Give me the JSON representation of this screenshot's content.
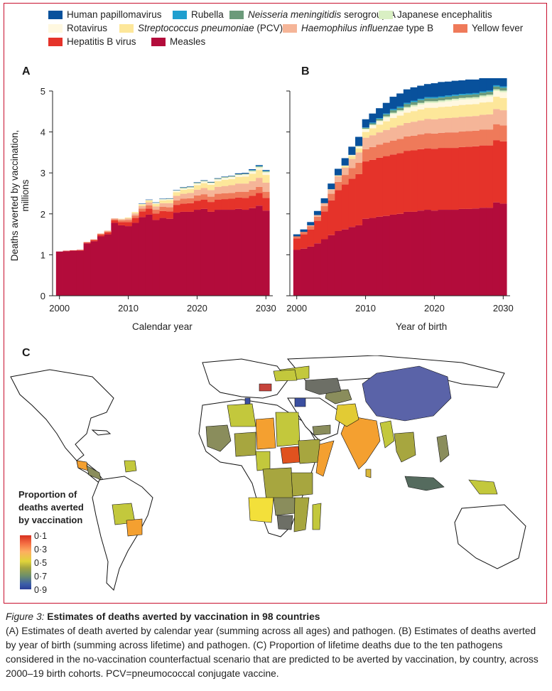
{
  "legend": [
    {
      "name": "Human papillomavirus",
      "color": "#08519c",
      "italic": false
    },
    {
      "name": "Rubella",
      "color": "#1f9fcf",
      "italic": false
    },
    {
      "name": "Neisseria meningitidis",
      "suffix": " serogroup A",
      "color": "#6b9a7a",
      "italic": true
    },
    {
      "name": "Japanese encephalitis",
      "color": "#d9efc3",
      "italic": false
    },
    {
      "name": "Rotavirus",
      "color": "#fff8e0",
      "italic": false
    },
    {
      "name": "Streptococcus pneumoniae",
      "suffix": " (PCV)",
      "color": "#fde79a",
      "italic": true
    },
    {
      "name": "Haemophilus influenzae",
      "suffix": " type B",
      "color": "#f5b598",
      "italic": true
    },
    {
      "name": "Yellow fever",
      "color": "#ef7a5a",
      "italic": false
    },
    {
      "name": "Hepatitis B virus",
      "color": "#e5332a",
      "italic": false
    },
    {
      "name": "Measles",
      "color": "#b30c3b",
      "italic": false
    }
  ],
  "panels": {
    "a": "A",
    "b": "B",
    "c": "C"
  },
  "chart_data": [
    {
      "type": "area",
      "panel": "A",
      "xlabel": "Calendar year",
      "ylabel": "Deaths averted by vaccination, millions",
      "ylim": [
        0,
        5
      ],
      "xlim": [
        1999,
        2031
      ],
      "yticks": [
        "0",
        "1",
        "2",
        "3",
        "4",
        "5"
      ],
      "xticks": [
        "2000",
        "2010",
        "2020",
        "2030"
      ],
      "x": [
        2000,
        2001,
        2002,
        2003,
        2004,
        2005,
        2006,
        2007,
        2008,
        2009,
        2010,
        2011,
        2012,
        2013,
        2014,
        2015,
        2016,
        2017,
        2018,
        2019,
        2020,
        2021,
        2022,
        2023,
        2024,
        2025,
        2026,
        2027,
        2028,
        2029,
        2030
      ],
      "series": [
        {
          "name": "Measles",
          "values": [
            1.08,
            1.09,
            1.1,
            1.1,
            1.28,
            1.33,
            1.45,
            1.5,
            1.78,
            1.72,
            1.7,
            1.78,
            1.92,
            1.98,
            1.85,
            1.9,
            1.88,
            2.03,
            2.05,
            2.05,
            2.1,
            2.12,
            2.05,
            2.1,
            2.1,
            2.1,
            2.12,
            2.1,
            2.14,
            2.2,
            2.08
          ]
        },
        {
          "name": "Hepatitis B virus",
          "values": [
            0.0,
            0.01,
            0.01,
            0.02,
            0.02,
            0.03,
            0.04,
            0.05,
            0.06,
            0.08,
            0.1,
            0.12,
            0.14,
            0.15,
            0.16,
            0.17,
            0.18,
            0.19,
            0.2,
            0.21,
            0.22,
            0.23,
            0.24,
            0.25,
            0.26,
            0.27,
            0.28,
            0.29,
            0.3,
            0.31,
            0.31
          ]
        },
        {
          "name": "Yellow fever",
          "values": [
            0.0,
            0.0,
            0.0,
            0.0,
            0.01,
            0.01,
            0.02,
            0.02,
            0.03,
            0.04,
            0.05,
            0.06,
            0.07,
            0.08,
            0.09,
            0.1,
            0.1,
            0.11,
            0.12,
            0.12,
            0.13,
            0.13,
            0.13,
            0.14,
            0.14,
            0.14,
            0.14,
            0.15,
            0.15,
            0.15,
            0.15
          ]
        },
        {
          "name": "Haemophilus influenzae type B",
          "values": [
            0.0,
            0.0,
            0.0,
            0.0,
            0.0,
            0.01,
            0.01,
            0.02,
            0.02,
            0.03,
            0.04,
            0.05,
            0.06,
            0.07,
            0.08,
            0.09,
            0.1,
            0.11,
            0.12,
            0.13,
            0.14,
            0.15,
            0.16,
            0.17,
            0.18,
            0.19,
            0.2,
            0.2,
            0.21,
            0.22,
            0.22
          ]
        },
        {
          "name": "Streptococcus pneumoniae (PCV)",
          "values": [
            0.0,
            0.0,
            0.0,
            0.0,
            0.0,
            0.0,
            0.0,
            0.0,
            0.0,
            0.01,
            0.02,
            0.03,
            0.04,
            0.05,
            0.06,
            0.07,
            0.08,
            0.09,
            0.1,
            0.1,
            0.11,
            0.12,
            0.13,
            0.14,
            0.15,
            0.15,
            0.16,
            0.17,
            0.18,
            0.19,
            0.19
          ]
        },
        {
          "name": "Rotavirus",
          "values": [
            0.0,
            0.0,
            0.0,
            0.0,
            0.0,
            0.0,
            0.0,
            0.0,
            0.0,
            0.0,
            0.0,
            0.01,
            0.01,
            0.01,
            0.02,
            0.02,
            0.02,
            0.03,
            0.03,
            0.03,
            0.04,
            0.04,
            0.04,
            0.04,
            0.05,
            0.05,
            0.05,
            0.05,
            0.05,
            0.06,
            0.06
          ]
        },
        {
          "name": "Japanese encephalitis",
          "values": [
            0.0,
            0.0,
            0.0,
            0.0,
            0.0,
            0.0,
            0.0,
            0.0,
            0.0,
            0.0,
            0.0,
            0.0,
            0.0,
            0.0,
            0.01,
            0.01,
            0.01,
            0.01,
            0.01,
            0.01,
            0.01,
            0.01,
            0.01,
            0.01,
            0.01,
            0.01,
            0.01,
            0.01,
            0.02,
            0.02,
            0.02
          ]
        },
        {
          "name": "Neisseria meningitidis serogroup A",
          "values": [
            0.0,
            0.0,
            0.0,
            0.0,
            0.0,
            0.0,
            0.0,
            0.0,
            0.0,
            0.0,
            0.0,
            0.0,
            0.0,
            0.0,
            0.0,
            0.0,
            0.0,
            0.0,
            0.01,
            0.01,
            0.01,
            0.01,
            0.01,
            0.01,
            0.01,
            0.01,
            0.01,
            0.01,
            0.01,
            0.01,
            0.01
          ]
        },
        {
          "name": "Rubella",
          "values": [
            0.0,
            0.0,
            0.0,
            0.0,
            0.0,
            0.0,
            0.0,
            0.0,
            0.0,
            0.0,
            0.0,
            0.0,
            0.0,
            0.0,
            0.0,
            0.0,
            0.0,
            0.0,
            0.0,
            0.0,
            0.0,
            0.0,
            0.0,
            0.0,
            0.0,
            0.0,
            0.0,
            0.0,
            0.01,
            0.01,
            0.01
          ]
        },
        {
          "name": "Human papillomavirus",
          "values": [
            0.0,
            0.0,
            0.0,
            0.0,
            0.0,
            0.0,
            0.0,
            0.0,
            0.0,
            0.0,
            0.0,
            0.0,
            0.01,
            0.01,
            0.01,
            0.01,
            0.01,
            0.01,
            0.01,
            0.01,
            0.01,
            0.01,
            0.01,
            0.01,
            0.01,
            0.01,
            0.02,
            0.02,
            0.02,
            0.02,
            0.02
          ]
        }
      ]
    },
    {
      "type": "area",
      "panel": "B",
      "xlabel": "Year of birth",
      "ylim": [
        0,
        5
      ],
      "xlim": [
        1999,
        2031
      ],
      "xticks": [
        "2000",
        "2010",
        "2020",
        "2030"
      ],
      "x": [
        2000,
        2001,
        2002,
        2003,
        2004,
        2005,
        2006,
        2007,
        2008,
        2009,
        2010,
        2011,
        2012,
        2013,
        2014,
        2015,
        2016,
        2017,
        2018,
        2019,
        2020,
        2021,
        2022,
        2023,
        2024,
        2025,
        2026,
        2027,
        2028,
        2029,
        2030
      ],
      "series": [
        {
          "name": "Measles",
          "values": [
            1.12,
            1.15,
            1.2,
            1.28,
            1.38,
            1.48,
            1.58,
            1.62,
            1.68,
            1.72,
            1.88,
            1.9,
            1.93,
            1.95,
            1.98,
            2.0,
            2.05,
            2.05,
            2.08,
            2.1,
            2.08,
            2.1,
            2.1,
            2.1,
            2.12,
            2.12,
            2.13,
            2.15,
            2.15,
            2.28,
            2.25
          ]
        },
        {
          "name": "Hepatitis B virus",
          "values": [
            0.28,
            0.35,
            0.42,
            0.55,
            0.68,
            0.85,
            1.0,
            1.1,
            1.18,
            1.25,
            1.4,
            1.42,
            1.44,
            1.46,
            1.47,
            1.48,
            1.49,
            1.5,
            1.5,
            1.5,
            1.51,
            1.51,
            1.51,
            1.51,
            1.51,
            1.52,
            1.52,
            1.52,
            1.52,
            1.52,
            1.52
          ]
        },
        {
          "name": "Yellow fever",
          "values": [
            0.05,
            0.06,
            0.08,
            0.1,
            0.13,
            0.16,
            0.2,
            0.23,
            0.26,
            0.28,
            0.3,
            0.31,
            0.32,
            0.33,
            0.34,
            0.35,
            0.35,
            0.36,
            0.36,
            0.37,
            0.37,
            0.37,
            0.38,
            0.38,
            0.38,
            0.38,
            0.38,
            0.39,
            0.39,
            0.39,
            0.39
          ]
        },
        {
          "name": "Haemophilus influenzae type B",
          "values": [
            0.0,
            0.0,
            0.02,
            0.04,
            0.07,
            0.1,
            0.14,
            0.18,
            0.22,
            0.25,
            0.28,
            0.29,
            0.3,
            0.31,
            0.32,
            0.33,
            0.33,
            0.34,
            0.34,
            0.35,
            0.35,
            0.35,
            0.35,
            0.36,
            0.36,
            0.36,
            0.36,
            0.36,
            0.37,
            0.37,
            0.37
          ]
        },
        {
          "name": "Streptococcus pneumoniae (PCV)",
          "values": [
            0.0,
            0.0,
            0.0,
            0.0,
            0.0,
            0.01,
            0.02,
            0.04,
            0.07,
            0.1,
            0.14,
            0.17,
            0.19,
            0.21,
            0.23,
            0.24,
            0.25,
            0.26,
            0.27,
            0.27,
            0.28,
            0.28,
            0.28,
            0.29,
            0.29,
            0.29,
            0.29,
            0.3,
            0.3,
            0.3,
            0.3
          ]
        },
        {
          "name": "Rotavirus",
          "values": [
            0.0,
            0.0,
            0.0,
            0.0,
            0.0,
            0.0,
            0.0,
            0.01,
            0.02,
            0.04,
            0.06,
            0.07,
            0.08,
            0.09,
            0.1,
            0.1,
            0.11,
            0.11,
            0.12,
            0.12,
            0.12,
            0.12,
            0.13,
            0.13,
            0.13,
            0.13,
            0.13,
            0.13,
            0.14,
            0.14,
            0.14
          ]
        },
        {
          "name": "Japanese encephalitis",
          "values": [
            0.0,
            0.0,
            0.0,
            0.0,
            0.0,
            0.0,
            0.0,
            0.0,
            0.01,
            0.01,
            0.02,
            0.02,
            0.02,
            0.03,
            0.03,
            0.03,
            0.03,
            0.04,
            0.04,
            0.04,
            0.04,
            0.04,
            0.04,
            0.04,
            0.04,
            0.04,
            0.04,
            0.04,
            0.04,
            0.04,
            0.04
          ]
        },
        {
          "name": "Neisseria meningitidis serogroup A",
          "values": [
            0.0,
            0.0,
            0.0,
            0.0,
            0.0,
            0.0,
            0.0,
            0.0,
            0.0,
            0.01,
            0.02,
            0.03,
            0.04,
            0.05,
            0.06,
            0.06,
            0.07,
            0.07,
            0.07,
            0.07,
            0.07,
            0.07,
            0.07,
            0.07,
            0.07,
            0.07,
            0.07,
            0.07,
            0.07,
            0.07,
            0.07
          ]
        },
        {
          "name": "Rubella",
          "values": [
            0.0,
            0.0,
            0.0,
            0.0,
            0.0,
            0.0,
            0.0,
            0.0,
            0.0,
            0.0,
            0.01,
            0.02,
            0.02,
            0.02,
            0.03,
            0.03,
            0.03,
            0.03,
            0.03,
            0.03,
            0.03,
            0.03,
            0.03,
            0.03,
            0.03,
            0.03,
            0.03,
            0.03,
            0.03,
            0.03,
            0.03
          ]
        },
        {
          "name": "Human papillomavirus",
          "values": [
            0.05,
            0.06,
            0.08,
            0.1,
            0.12,
            0.14,
            0.16,
            0.18,
            0.2,
            0.22,
            0.2,
            0.22,
            0.24,
            0.26,
            0.3,
            0.32,
            0.33,
            0.33,
            0.32,
            0.32,
            0.34,
            0.35,
            0.34,
            0.34,
            0.33,
            0.34,
            0.33,
            0.33,
            0.31,
            0.3,
            0.3
          ]
        }
      ]
    }
  ],
  "map_legend": {
    "title_lines": [
      "Proportion of",
      "deaths averted",
      "by vaccination"
    ],
    "ticks": [
      "0·1",
      "0·3",
      "0·5",
      "0·7",
      "0·9"
    ]
  },
  "caption": {
    "figure_label": "Figure 3:",
    "title": " Estimates of deaths averted by vaccination in 98 countries",
    "body": "(A) Estimates of death averted by calendar year (summing across all ages) and pathogen. (B) Estimates of deaths averted by year of birth (summing across lifetime) and pathogen. (C) Proportion of lifetime deaths due to the ten pathogens considered in the no-vaccination counterfactual scenario that are predicted to be averted by vaccination, by country, across 2000–19 birth cohorts. PCV=pneumococcal conjugate vaccine."
  }
}
